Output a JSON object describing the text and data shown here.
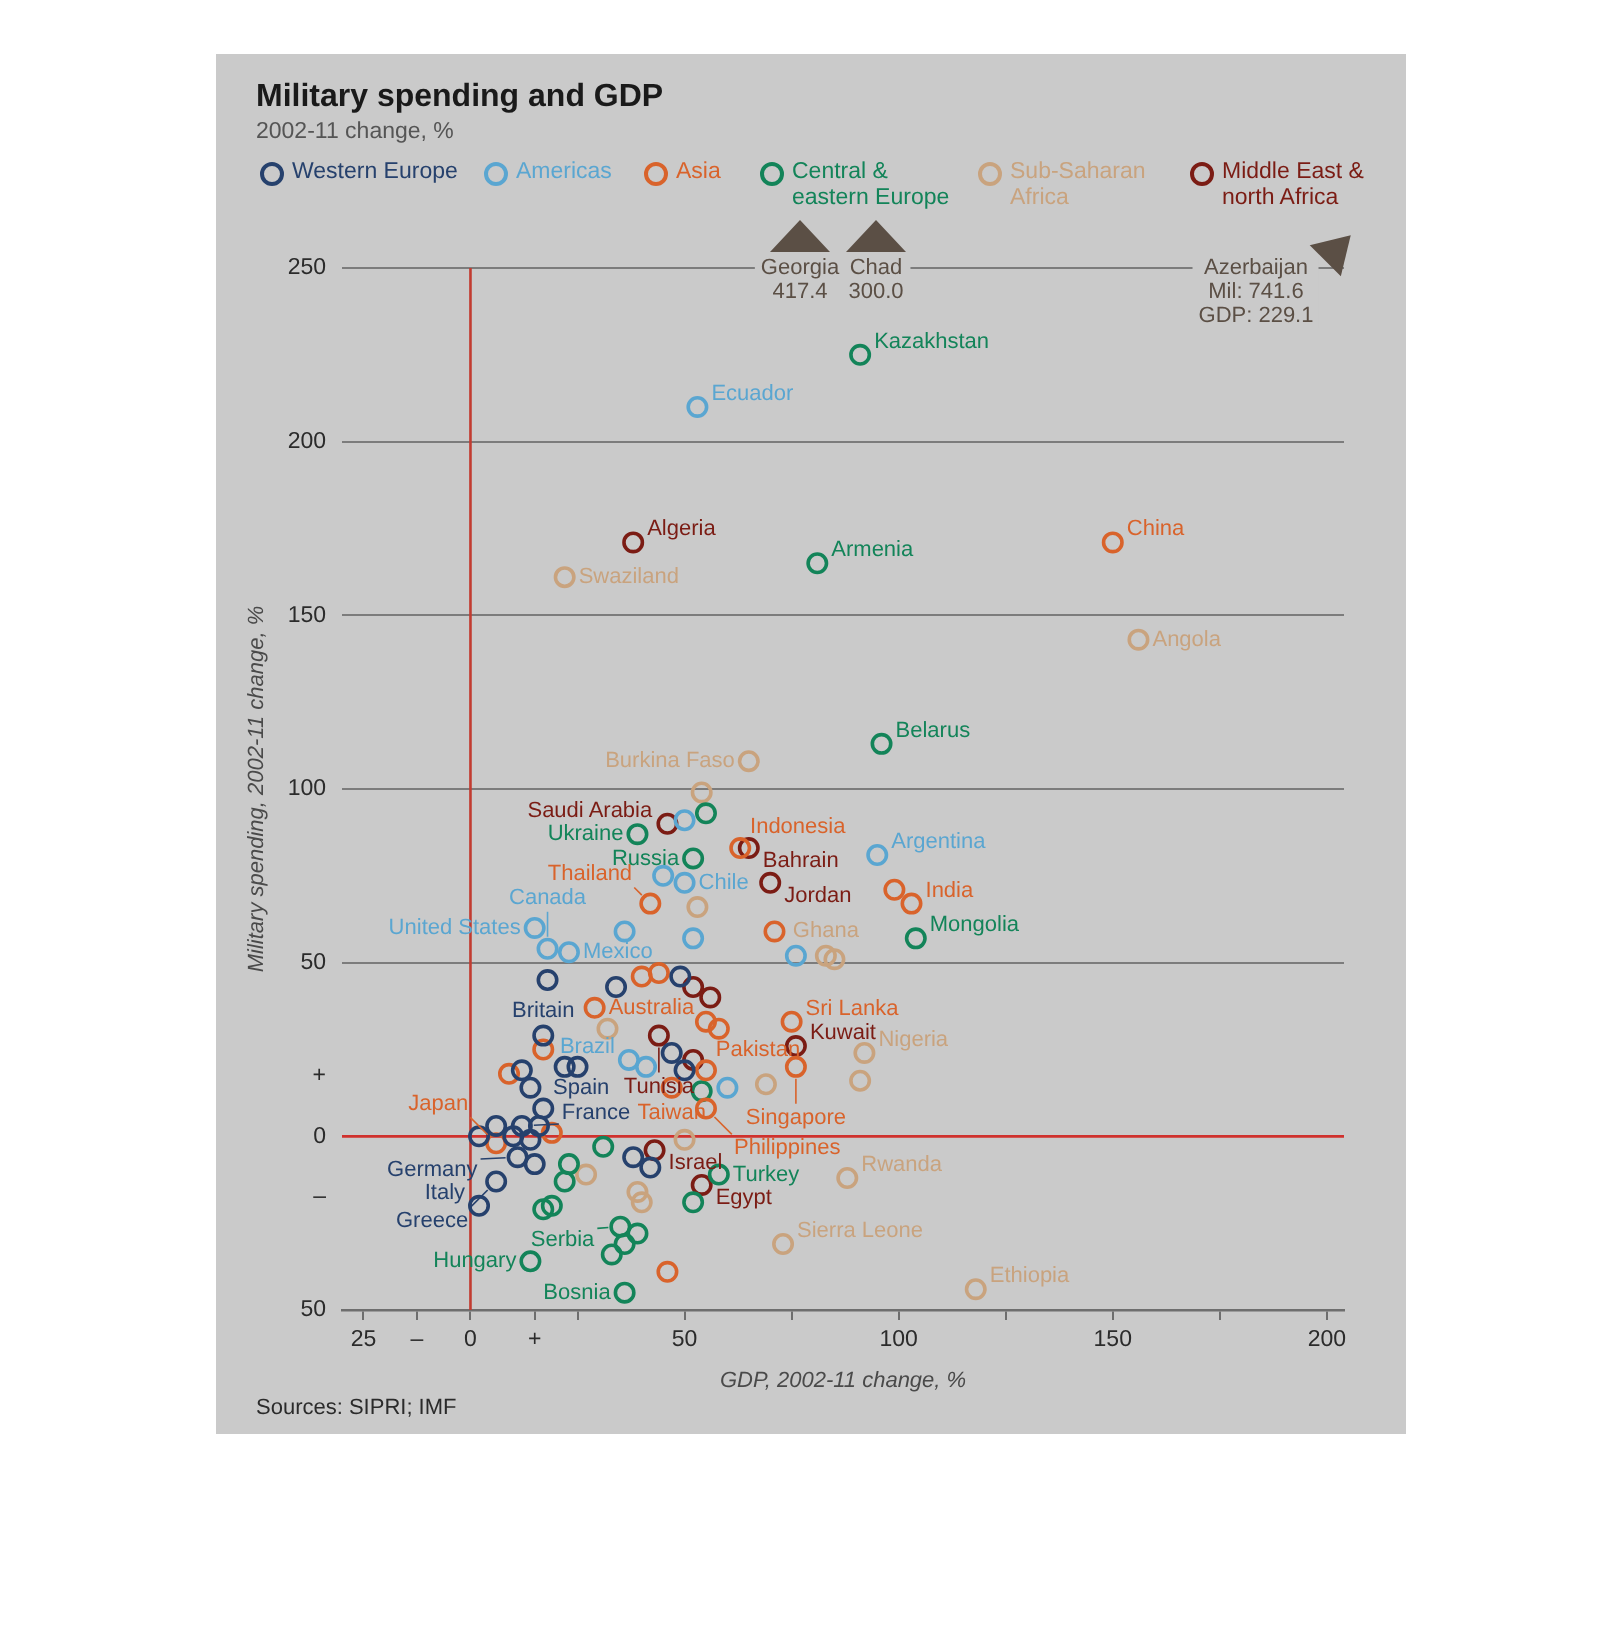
{
  "chart_data": {
    "type": "scatter",
    "title": "Military spending and GDP",
    "subtitle": "2002-11 change, %",
    "xlabel": "GDP, 2002-11 change, %",
    "ylabel": "Military spending, 2002-11 change, %",
    "xlim": [
      -30,
      204
    ],
    "ylim": [
      -50,
      250
    ],
    "xticks": [
      {
        "value": -25,
        "label": "25"
      },
      {
        "value": -12.5,
        "label": "–"
      },
      0,
      {
        "value": 15,
        "label": "+"
      },
      {
        "value": 25,
        "label": null
      },
      50,
      {
        "value": 75,
        "label": null
      },
      100,
      {
        "value": 125,
        "label": null
      },
      150,
      {
        "value": 175,
        "label": null
      },
      200
    ],
    "yticks": [
      {
        "value": -50,
        "label": "50"
      },
      {
        "value": -17.5,
        "label": "–"
      },
      0,
      {
        "value": 17.5,
        "label": "+"
      },
      50,
      100,
      150,
      200,
      250
    ],
    "grid": "y",
    "legend": "top",
    "marker": "circle",
    "ref_lines": [
      {
        "axis": "y",
        "value": 0,
        "color": "#d0312d"
      },
      {
        "axis": "x",
        "value": 0,
        "color": "#c23b30"
      }
    ],
    "series": [
      {
        "name": "Western Europe",
        "color": "#26416d",
        "x": [
          2,
          6,
          10,
          12,
          14,
          16,
          11,
          15,
          6,
          2,
          17,
          14,
          12,
          22,
          25,
          17,
          18,
          34,
          49,
          50,
          47,
          38,
          42
        ],
        "values": [
          0,
          3,
          0,
          3,
          -1,
          3,
          -6,
          -8,
          -13,
          -20,
          8,
          14,
          19,
          20,
          20,
          29,
          45,
          43,
          46,
          19,
          24,
          -6,
          -9
        ],
        "value_labels": [
          null,
          null,
          null,
          "France",
          null,
          null,
          "Germany",
          null,
          "Greece",
          "Italy",
          "Spain",
          null,
          null,
          null,
          null,
          "Britain",
          null,
          null,
          null,
          null,
          null,
          null,
          null
        ]
      },
      {
        "name": "Americas",
        "color": "#5aa6d1",
        "x": [
          53,
          50,
          95,
          45,
          50,
          36,
          15,
          18,
          23,
          52,
          76,
          37,
          41,
          60
        ],
        "values": [
          210,
          91,
          81,
          75,
          73,
          59,
          60,
          54,
          53,
          57,
          52,
          22,
          20,
          14
        ],
        "value_labels": [
          "Ecuador",
          null,
          "Argentina",
          null,
          "Chile",
          null,
          "United States",
          "Canada",
          "Mexico",
          null,
          null,
          "Brazil",
          null,
          null
        ]
      },
      {
        "name": "Asia",
        "color": "#d9632b",
        "x": [
          150,
          63,
          99,
          103,
          42,
          71,
          40,
          44,
          29,
          55,
          58,
          75,
          76,
          55,
          47,
          55,
          17,
          9,
          6,
          19,
          46
        ],
        "values": [
          171,
          83,
          71,
          67,
          67,
          59,
          46,
          47,
          37,
          33,
          31,
          33,
          20,
          19,
          14,
          8,
          25,
          18,
          -2,
          1,
          -39
        ],
        "value_labels": [
          "China",
          "Indonesia",
          null,
          "India",
          "Thailand",
          null,
          null,
          null,
          "Australia",
          null,
          null,
          "Sri Lanka",
          "Singapore",
          "Pakistan",
          "Taiwan",
          "Philippines",
          null,
          null,
          "Japan",
          null,
          null
        ]
      },
      {
        "name": "Central & eastern Europe",
        "color": "#138459",
        "x": [
          91,
          81,
          96,
          55,
          39,
          52,
          104,
          54,
          58,
          52,
          35,
          39,
          36,
          33,
          36,
          14,
          17,
          19,
          23,
          22,
          31
        ],
        "values": [
          225,
          165,
          113,
          93,
          87,
          80,
          57,
          13,
          -11,
          -19,
          -26,
          -28,
          -31,
          -34,
          -45,
          -36,
          -21,
          -20,
          -8,
          -13,
          -3
        ],
        "value_labels": [
          "Kazakhstan",
          "Armenia",
          "Belarus",
          null,
          "Ukraine",
          "Russia",
          "Mongolia",
          null,
          "Turkey",
          null,
          "Serbia",
          null,
          null,
          null,
          "Bosnia",
          "Hungary",
          null,
          null,
          null,
          null,
          null
        ]
      },
      {
        "name": "Sub-Saharan Africa",
        "color": "#c9a37e",
        "x": [
          22,
          156,
          65,
          54,
          53,
          83,
          85,
          32,
          92,
          91,
          69,
          27,
          39,
          40,
          50,
          88,
          73,
          118
        ],
        "values": [
          161,
          143,
          108,
          99,
          66,
          52,
          51,
          31,
          24,
          16,
          15,
          -11,
          -16,
          -19,
          -1,
          -12,
          -31,
          -44
        ],
        "value_labels": [
          "Swaziland",
          "Angola",
          "Burkina Faso",
          null,
          null,
          "Ghana",
          null,
          null,
          "Nigeria",
          null,
          null,
          null,
          null,
          null,
          null,
          "Rwanda",
          "Sierra Leone",
          "Ethiopia"
        ]
      },
      {
        "name": "Middle East & north Africa",
        "color": "#7b1c14",
        "x": [
          38,
          46,
          65,
          70,
          52,
          56,
          44,
          76,
          52,
          43,
          54
        ],
        "values": [
          171,
          90,
          83,
          73,
          43,
          40,
          29,
          26,
          22,
          -4,
          -14
        ],
        "value_labels": [
          "Algeria",
          "Saudi Arabia",
          "Bahrain",
          "Jordan",
          null,
          null,
          "Tunisia",
          "Kuwait",
          null,
          "Israel",
          "Egypt"
        ]
      }
    ],
    "annotations": [
      "Georgia\n417.4",
      "Chad\n300.0",
      "Azerbaijan\nMil: 741.6\nGDP: 229.1",
      "Sources: SIPRI; IMF"
    ]
  }
}
